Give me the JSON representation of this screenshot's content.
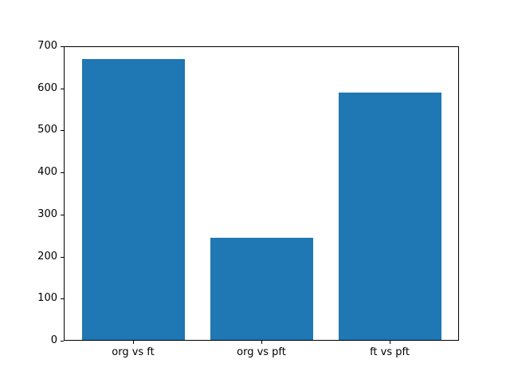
{
  "figure": {
    "background": "#ffffff",
    "frame_color": "#000000",
    "text_color": "#000000"
  },
  "chart_data": {
    "type": "bar",
    "categories": [
      "org vs ft",
      "org vs pft",
      "ft vs pft"
    ],
    "values": [
      670,
      245,
      590
    ],
    "title": "",
    "xlabel": "",
    "ylabel": "",
    "ylim": [
      0,
      700
    ],
    "yticks": [
      0,
      100,
      200,
      300,
      400,
      500,
      600,
      700
    ],
    "bar_color": "#1f77b4",
    "bar_width_fraction": 0.8,
    "x_margin_fraction": 0.05,
    "grid": false,
    "legend": "none"
  }
}
